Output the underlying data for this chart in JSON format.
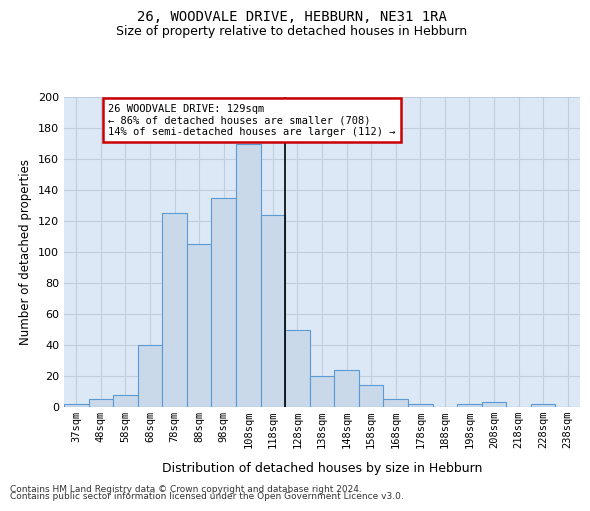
{
  "title1": "26, WOODVALE DRIVE, HEBBURN, NE31 1RA",
  "title2": "Size of property relative to detached houses in Hebburn",
  "xlabel": "Distribution of detached houses by size in Hebburn",
  "ylabel": "Number of detached properties",
  "footnote1": "Contains HM Land Registry data © Crown copyright and database right 2024.",
  "footnote2": "Contains public sector information licensed under the Open Government Licence v3.0.",
  "bar_labels": [
    "37sqm",
    "48sqm",
    "58sqm",
    "68sqm",
    "78sqm",
    "88sqm",
    "98sqm",
    "108sqm",
    "118sqm",
    "128sqm",
    "138sqm",
    "148sqm",
    "158sqm",
    "168sqm",
    "178sqm",
    "188sqm",
    "198sqm",
    "208sqm",
    "218sqm",
    "228sqm",
    "238sqm"
  ],
  "bar_values": [
    2,
    5,
    8,
    40,
    125,
    105,
    135,
    170,
    124,
    50,
    20,
    24,
    14,
    5,
    2,
    0,
    2,
    3,
    0,
    2,
    0
  ],
  "bar_color": "#c9d9ea",
  "bar_edge_color": "#5b9bd5",
  "vline_color": "#000000",
  "annotation_text": "26 WOODVALE DRIVE: 129sqm\n← 86% of detached houses are smaller (708)\n14% of semi-detached houses are larger (112) →",
  "annotation_box_color": "#ffffff",
  "annotation_box_edge_color": "#cc0000",
  "ylim": [
    0,
    200
  ],
  "yticks": [
    0,
    20,
    40,
    60,
    80,
    100,
    120,
    140,
    160,
    180,
    200
  ],
  "background_color": "#ffffff",
  "axes_bg_color": "#dce8f5",
  "grid_color": "#c0cfe0"
}
